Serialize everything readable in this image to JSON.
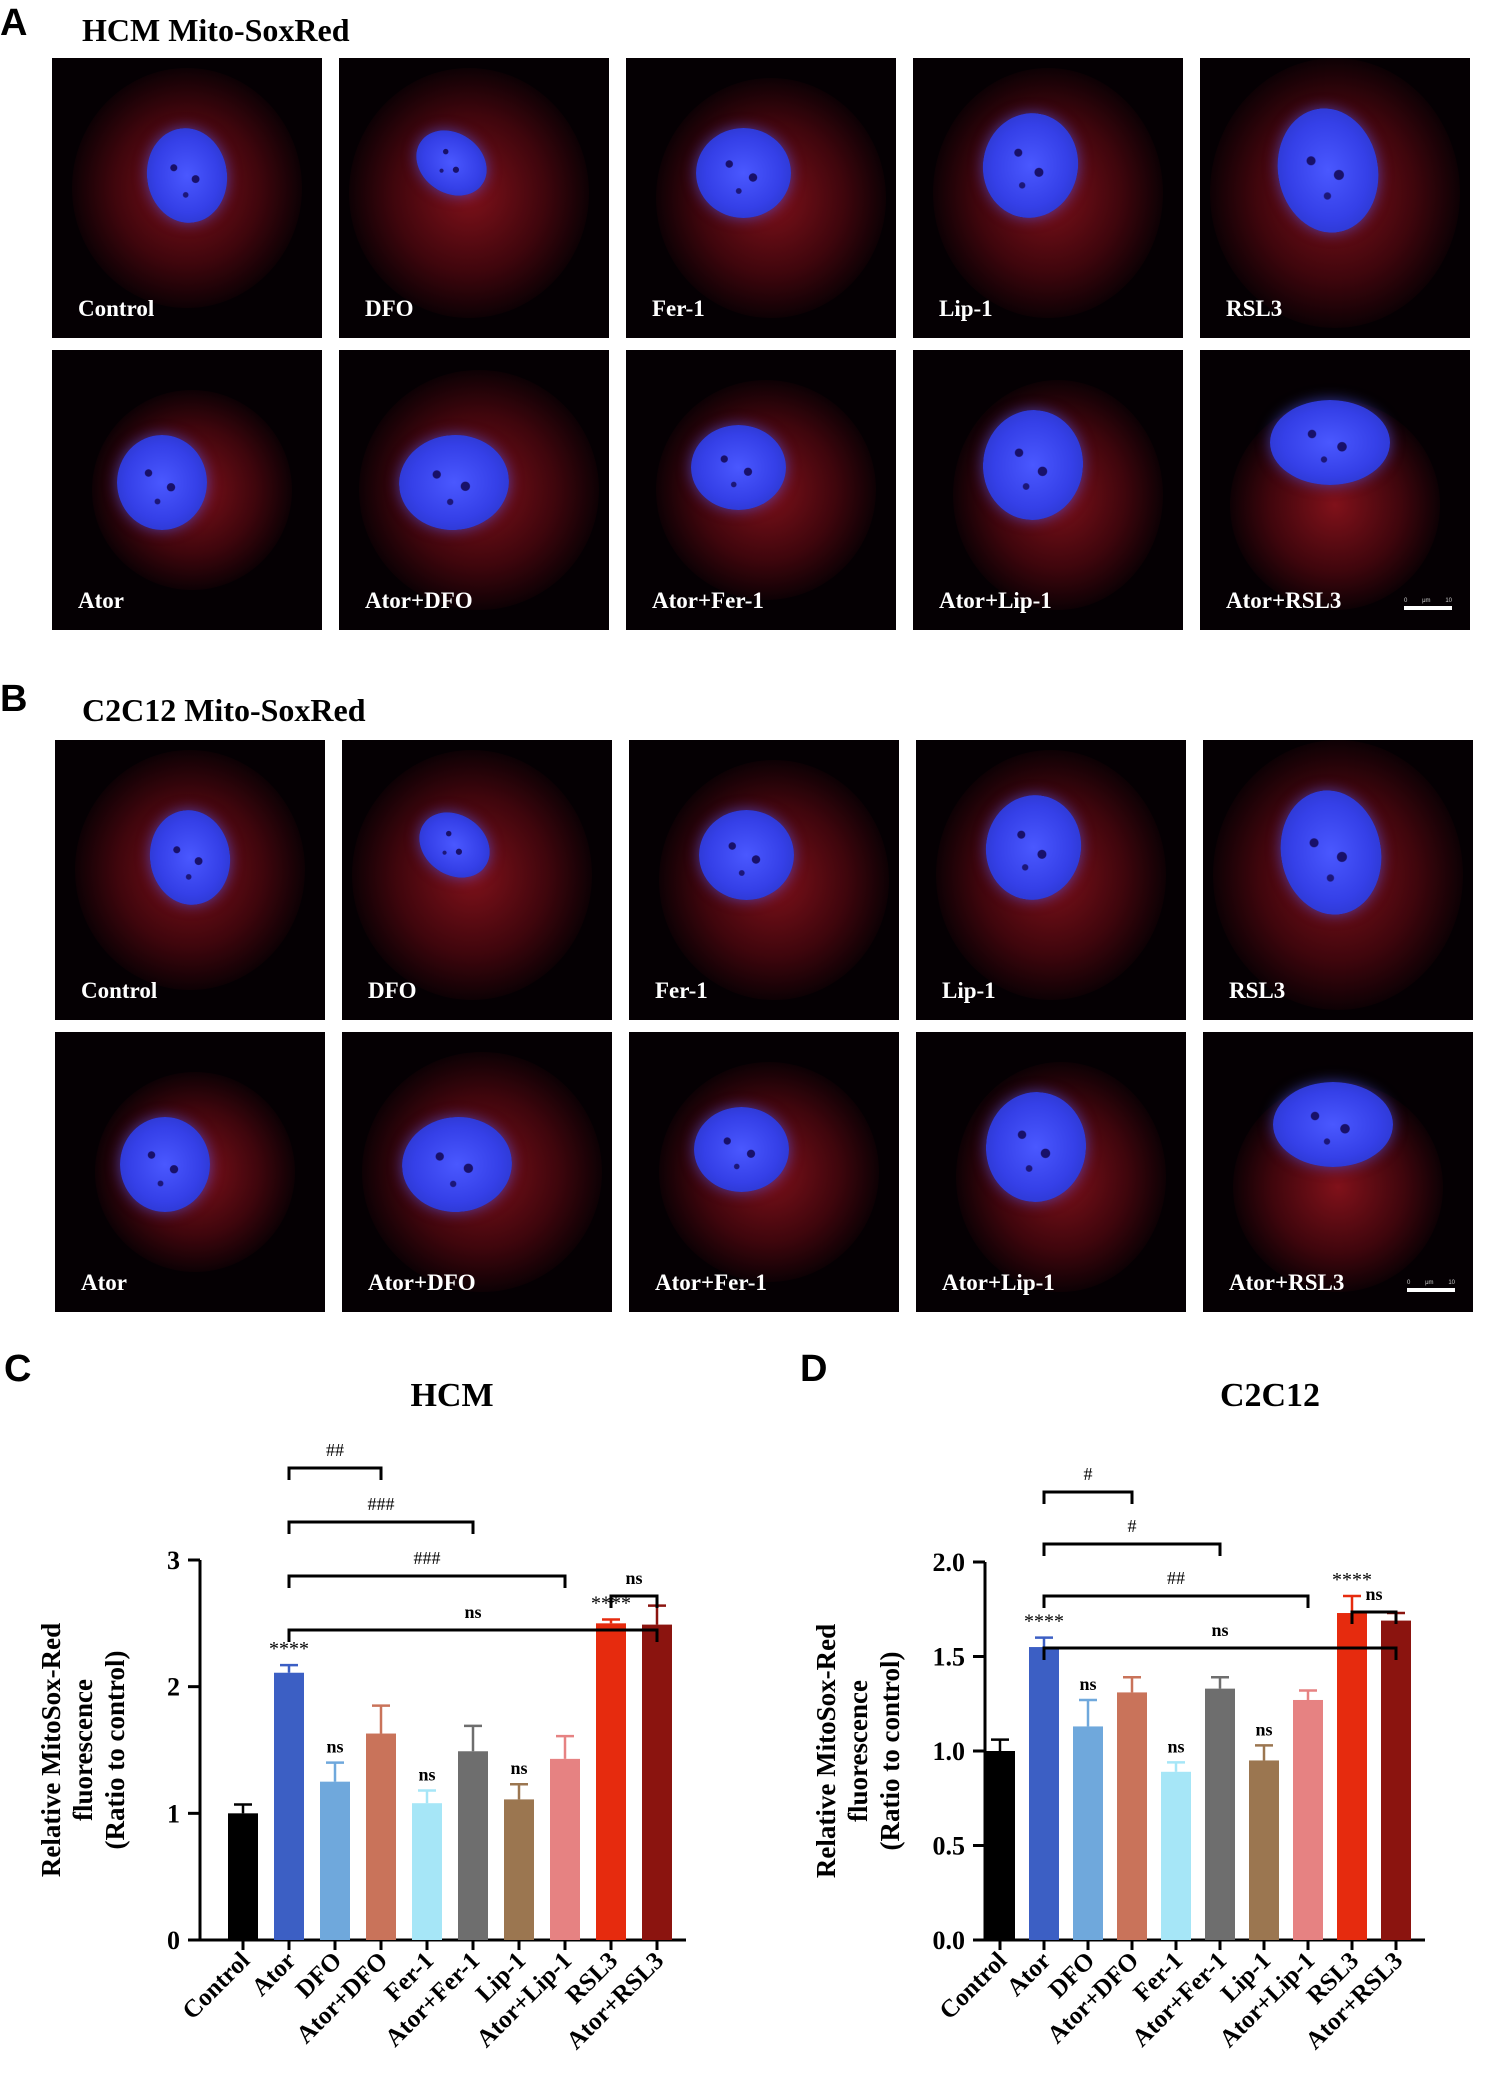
{
  "panels": {
    "A": {
      "letter": "A",
      "title": "HCM Mito-SoxRed",
      "tiles": [
        "Control",
        "DFO",
        "Fer-1",
        "Lip-1",
        "RSL3",
        "Ator",
        "Ator+DFO",
        "Ator+Fer-1",
        "Ator+Lip-1",
        "Ator+RSL3"
      ]
    },
    "B": {
      "letter": "B",
      "title": "C2C12 Mito-SoxRed",
      "tiles": [
        "Control",
        "DFO",
        "Fer-1",
        "Lip-1",
        "RSL3",
        "Ator",
        "Ator+DFO",
        "Ator+Fer-1",
        "Ator+Lip-1",
        "Ator+RSL3"
      ]
    },
    "C": {
      "letter": "C"
    },
    "D": {
      "letter": "D"
    }
  },
  "scale_bar_text": [
    "0",
    "μm",
    "10"
  ],
  "colors": {
    "bars": [
      "#000000",
      "#3c5fc4",
      "#6fa8dc",
      "#c9735a",
      "#a6e6f7",
      "#6e6e6e",
      "#9b7650",
      "#e68282",
      "#e62b0e",
      "#8b140f"
    ],
    "nucleus": "#3a46f0",
    "cytoplasm": "#a01828",
    "background": "#050003"
  },
  "chart_data": [
    {
      "type": "bar",
      "title": "HCM",
      "ylabel": "Relative  MitoSox-Red fluorescence (Ratio to control)",
      "ylim": [
        0,
        3
      ],
      "yticks": [
        "0",
        "1",
        "2",
        "3"
      ],
      "categories": [
        "Control",
        "Ator",
        "DFO",
        "Ator+DFO",
        "Fer-1",
        "Ator+Fer-1",
        "Lip-1",
        "Ator+Lip-1",
        "RSL3",
        "Ator+RSL3"
      ],
      "values": [
        1.0,
        2.11,
        1.25,
        1.63,
        1.08,
        1.49,
        1.11,
        1.43,
        2.5,
        2.49
      ],
      "errors": [
        0.07,
        0.06,
        0.15,
        0.22,
        0.1,
        0.2,
        0.12,
        0.18,
        0.03,
        0.15
      ],
      "annotations": [
        "",
        "****",
        "ns",
        "",
        "ns",
        "",
        "ns",
        "",
        "****",
        ""
      ],
      "brackets": [
        {
          "from": 1,
          "to": 3,
          "label": "##"
        },
        {
          "from": 1,
          "to": 5,
          "label": "###"
        },
        {
          "from": 1,
          "to": 7,
          "label": "###"
        },
        {
          "from": 1,
          "to": 9,
          "label": "ns"
        },
        {
          "from": 8,
          "to": 9,
          "label": "ns"
        }
      ]
    },
    {
      "type": "bar",
      "title": "C2C12",
      "ylabel": "Relative  MitoSox-Red fluorescence (Ratio to control)",
      "ylim": [
        0,
        2.0
      ],
      "yticks": [
        "0.0",
        "0.5",
        "1.0",
        "1.5",
        "2.0"
      ],
      "categories": [
        "Control",
        "Ator",
        "DFO",
        "Ator+DFO",
        "Fer-1",
        "Ator+Fer-1",
        "Lip-1",
        "Ator+Lip-1",
        "RSL3",
        "Ator+RSL3"
      ],
      "values": [
        1.0,
        1.55,
        1.13,
        1.31,
        0.89,
        1.33,
        0.95,
        1.27,
        1.73,
        1.69
      ],
      "errors": [
        0.06,
        0.05,
        0.14,
        0.08,
        0.05,
        0.06,
        0.08,
        0.05,
        0.09,
        0.04
      ],
      "annotations": [
        "",
        "****",
        "ns",
        "",
        "ns",
        "",
        "ns",
        "",
        "****",
        ""
      ],
      "brackets": [
        {
          "from": 1,
          "to": 3,
          "label": "#"
        },
        {
          "from": 1,
          "to": 5,
          "label": "#"
        },
        {
          "from": 1,
          "to": 7,
          "label": "##"
        },
        {
          "from": 1,
          "to": 9,
          "label": "ns"
        },
        {
          "from": 8,
          "to": 9,
          "label": "ns"
        }
      ]
    }
  ]
}
